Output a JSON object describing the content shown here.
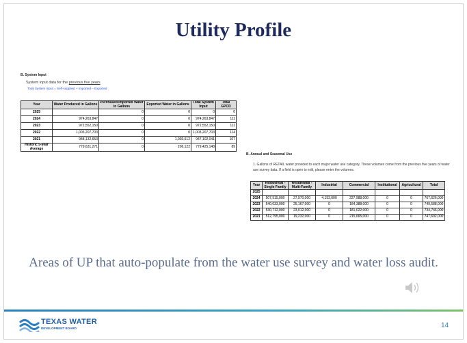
{
  "slide": {
    "title": "Utility Profile",
    "page_number": "14"
  },
  "system_input": {
    "heading": "B. System Input",
    "intro": {
      "lead": "System input data for the ",
      "underlined": "previous five years",
      "trail": "."
    },
    "formula": "Total System Input = Self-supplied + Imported – Exported",
    "table": {
      "headers": [
        "Year",
        "Water Produced in Gallons",
        "Purchased/Imported Water in Gallons",
        "Exported Water in Gallons",
        "Total System Input",
        "Total GPCD"
      ],
      "rows": [
        [
          "2025",
          null,
          "0",
          "0",
          "0",
          "0"
        ],
        [
          "2024",
          "974,263,847",
          "0",
          "0",
          "974,263,847",
          "111"
        ],
        [
          "2023",
          "972,552,150",
          "0",
          "0",
          "972,552,150",
          "111"
        ],
        [
          "2022",
          "1,003,207,703",
          "0",
          "0",
          "1,003,207,703",
          "114"
        ],
        [
          "2021",
          "948,132,653",
          "0",
          "1,030,612",
          "947,102,041",
          "107"
        ],
        [
          "Historic 5-year Average",
          "779,631,271",
          "0",
          "206,122",
          "779,425,148",
          "89"
        ]
      ]
    }
  },
  "annual_use": {
    "heading": "B. Annual and Seasonal Use",
    "instruction": "1. Gallons of RETAIL water provided to each major water use category. These volumes come from the previous five years of water use survey data. If a field is open to edit, please enter the volumes.",
    "table": {
      "headers": [
        "Year",
        "Residential - Single Family",
        "Residential - Multi-Family",
        "Industrial",
        "Commercial",
        "Institutional",
        "Agricultural",
        "Total"
      ],
      "rows": [
        [
          "2025",
          null,
          null,
          null,
          null,
          null,
          null,
          null
        ],
        [
          "2024",
          "507,515,000",
          "27,970,000",
          "4,153,000",
          "227,988,000",
          "0",
          "0",
          "767,626,000"
        ],
        [
          "2023",
          "540,033,000",
          "25,167,000",
          "0",
          "184,388,000",
          "0",
          "0",
          "749,588,000"
        ],
        [
          "2022",
          "530,712,000",
          "23,012,000",
          "0",
          "181,022,000",
          "0",
          "0",
          "734,746,000"
        ],
        [
          "2021",
          "512,795,000",
          "19,232,000",
          "0",
          "215,665,000",
          "0",
          "0",
          "747,692,000"
        ]
      ]
    }
  },
  "caption": "Areas of UP that auto-populate from the water use survey and water loss audit.",
  "logo": {
    "name": "TEXAS WATER",
    "subtitle": "DEVELOPMENT BOARD"
  }
}
